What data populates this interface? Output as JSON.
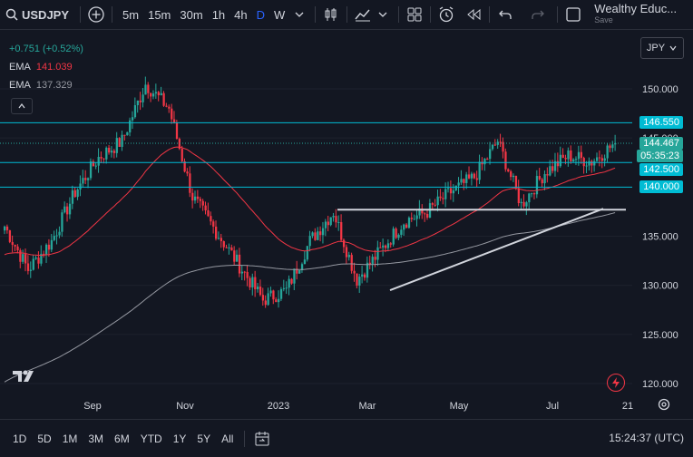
{
  "toolbar": {
    "symbol": "USDJPY",
    "timeframes": [
      "5m",
      "15m",
      "30m",
      "1h",
      "4h",
      "D",
      "W"
    ],
    "active_timeframe": "D",
    "account_name": "Wealthy Educ...",
    "save_label": "Save",
    "icons": [
      "add-symbol-icon",
      "chevron-down-icon",
      "candles-icon",
      "indicators-icon",
      "chevron-down-icon",
      "layouts-icon",
      "alert-icon",
      "replay-icon",
      "undo-icon",
      "redo-icon",
      "fullscreen-icon"
    ]
  },
  "legend": {
    "change": "+0.751 (+0.52%)",
    "ema1_label": "EMA",
    "ema1_value": "141.039",
    "ema2_label": "EMA",
    "ema2_value": "137.329"
  },
  "currency": "JPY",
  "price_axis": {
    "ticks": [
      "150.000",
      "145.000",
      "135.000",
      "130.000",
      "125.000",
      "120.000"
    ],
    "tags": [
      {
        "text": "146.550",
        "color": "#00bcd4"
      },
      {
        "text": "144.467",
        "color": "#26a69a"
      },
      {
        "text": "05:35:23",
        "color": "#26a69a"
      },
      {
        "text": "142.500",
        "color": "#00bcd4"
      },
      {
        "text": "140.000",
        "color": "#00bcd4"
      }
    ]
  },
  "time_axis": [
    "Sep",
    "Nov",
    "2023",
    "Mar",
    "May",
    "Jul",
    "21"
  ],
  "bottom": {
    "ranges": [
      "1D",
      "5D",
      "1M",
      "3M",
      "6M",
      "YTD",
      "1Y",
      "5Y",
      "All"
    ],
    "clock": "15:24:37 (UTC)"
  },
  "colors": {
    "up": "#26a69a",
    "down": "#f23645",
    "hline": "#00bcd4",
    "ema_fast": "#f23645",
    "ema_slow": "#9598a1"
  },
  "chart_data": {
    "type": "candlestick",
    "symbol": "USDJPY",
    "ylim": [
      119,
      153
    ],
    "horizontal_levels": [
      146.55,
      142.5,
      140.0
    ],
    "closes": [
      {
        "x": "2022-07",
        "y": 136.0
      },
      {
        "x": "2022-08-01",
        "y": 131.6
      },
      {
        "x": "2022-08-15",
        "y": 134.5
      },
      {
        "x": "2022-09-01",
        "y": 139.5
      },
      {
        "x": "2022-09-15",
        "y": 143.0
      },
      {
        "x": "2022-10-01",
        "y": 144.7
      },
      {
        "x": "2022-10-20",
        "y": 150.5
      },
      {
        "x": "2022-11-01",
        "y": 148.0
      },
      {
        "x": "2022-11-15",
        "y": 139.0
      },
      {
        "x": "2022-12-01",
        "y": 135.5
      },
      {
        "x": "2022-12-20",
        "y": 132.0
      },
      {
        "x": "2023-01-15",
        "y": 128.5
      },
      {
        "x": "2023-02-01",
        "y": 129.5
      },
      {
        "x": "2023-02-20",
        "y": 134.5
      },
      {
        "x": "2023-03-08",
        "y": 137.5
      },
      {
        "x": "2023-03-24",
        "y": 130.6
      },
      {
        "x": "2023-04-15",
        "y": 133.5
      },
      {
        "x": "2023-05-01",
        "y": 136.5
      },
      {
        "x": "2023-05-15",
        "y": 137.5
      },
      {
        "x": "2023-06-01",
        "y": 139.5
      },
      {
        "x": "2023-06-15",
        "y": 141.0
      },
      {
        "x": "2023-06-30",
        "y": 144.7
      },
      {
        "x": "2023-07-14",
        "y": 138.2
      },
      {
        "x": "2023-07-25",
        "y": 141.5
      },
      {
        "x": "2023-08-01",
        "y": 143.2
      },
      {
        "x": "2023-08-08",
        "y": 142.6
      },
      {
        "x": "2023-08-15",
        "y": 144.467
      }
    ]
  }
}
